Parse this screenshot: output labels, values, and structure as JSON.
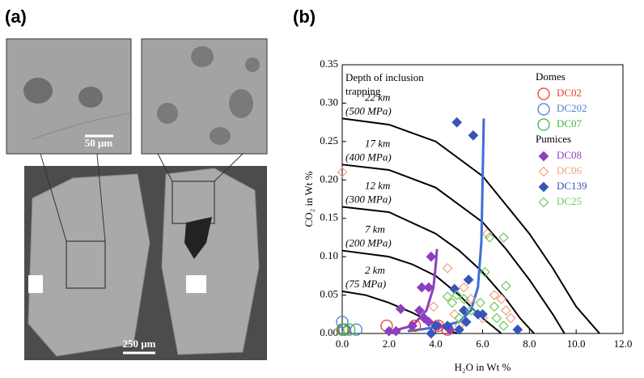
{
  "panel_labels": [
    "(a)",
    "(b)"
  ],
  "image_a": {
    "inset_scale": "50 μm",
    "main_scale": "250 μm"
  },
  "chart_data": {
    "type": "scatter",
    "x_label": "H₂O in Wt %",
    "y_label": "CO₂ in Wt %",
    "annotation": [
      "Depth of inclusion",
      "trapping"
    ],
    "xlim": [
      0,
      12
    ],
    "ylim": [
      0,
      0.35
    ],
    "xticks": [
      {
        "value": 0,
        "label": "0.0"
      },
      {
        "value": 2,
        "label": "2.0"
      },
      {
        "value": 4,
        "label": "4.0"
      },
      {
        "value": 6,
        "label": "6.0"
      },
      {
        "value": 8,
        "label": "8.0"
      },
      {
        "value": 10,
        "label": "10.0"
      },
      {
        "value": 12,
        "label": "12.0"
      }
    ],
    "yticks": [
      {
        "value": 0,
        "label": "0.00"
      },
      {
        "value": 0.05,
        "label": "0.05"
      },
      {
        "value": 0.1,
        "label": "0.10"
      },
      {
        "value": 0.15,
        "label": "0.15"
      },
      {
        "value": 0.2,
        "label": "0.20"
      },
      {
        "value": 0.25,
        "label": "0.25"
      },
      {
        "value": 0.3,
        "label": "0.30"
      },
      {
        "value": 0.35,
        "label": "0.35"
      }
    ],
    "legend_groups": [
      "Domes",
      "Pumices"
    ],
    "series": [
      {
        "name": "DC02",
        "group": 0,
        "marker": "circle",
        "filled": false,
        "color": "#e8402a",
        "x": [
          0.05,
          1.9,
          3.1,
          4.1,
          4.5
        ],
        "values": [
          0.005,
          0.01,
          0.01,
          0.01,
          0.005
        ]
      },
      {
        "name": "DC202",
        "group": 0,
        "marker": "circle",
        "filled": false,
        "color": "#4a7fd0",
        "x": [
          0,
          0.1,
          0.6
        ],
        "values": [
          0.015,
          0.005,
          0.005
        ]
      },
      {
        "name": "DC07",
        "group": 0,
        "marker": "circle",
        "filled": false,
        "color": "#3db83a",
        "x": [
          0,
          0.3
        ],
        "values": [
          0.005,
          0.005
        ]
      },
      {
        "name": "DC08",
        "group": 1,
        "marker": "diamond",
        "filled": true,
        "color": "#8e3fc0",
        "x": [
          3.8,
          3.4,
          3.7,
          2.5,
          3.3,
          3.5,
          3.7,
          4.1,
          3.0,
          2.3,
          2.0,
          4.6
        ],
        "values": [
          0.1,
          0.06,
          0.06,
          0.032,
          0.03,
          0.02,
          0.015,
          0.01,
          0.01,
          0.003,
          0.003,
          0.005
        ]
      },
      {
        "name": "DC06",
        "group": 1,
        "marker": "diamond",
        "filled": false,
        "color": "#f0a080",
        "x": [
          0,
          6.2,
          4.5,
          5.2,
          6.5,
          6.8,
          7.0,
          5.5,
          6.0,
          4.8,
          7.2,
          3.9,
          5.0
        ],
        "values": [
          0.21,
          0.13,
          0.085,
          0.06,
          0.05,
          0.045,
          0.03,
          0.045,
          0.02,
          0.025,
          0.02,
          0.035,
          0.01
        ]
      },
      {
        "name": "DC139",
        "group": 1,
        "marker": "diamond",
        "filled": true,
        "color": "#3556b8",
        "x": [
          4.9,
          5.6,
          5.4,
          4.8,
          5.2,
          6.0,
          5.8,
          5.3,
          4.5,
          4.0,
          7.5,
          5.0,
          3.8
        ],
        "values": [
          0.275,
          0.258,
          0.07,
          0.058,
          0.03,
          0.025,
          0.025,
          0.015,
          0.01,
          0.01,
          0.005,
          0.005,
          0.0
        ]
      },
      {
        "name": "DC25",
        "group": 1,
        "marker": "diamond",
        "filled": false,
        "color": "#6acc5a",
        "x": [
          6.9,
          6.3,
          7.0,
          6.1,
          6.5,
          4.9,
          4.5,
          5.2,
          4.7,
          5.9,
          6.6,
          6.9,
          5.5,
          5.0
        ],
        "values": [
          0.125,
          0.125,
          0.062,
          0.08,
          0.035,
          0.05,
          0.048,
          0.045,
          0.04,
          0.04,
          0.02,
          0.01,
          0.03,
          0.02
        ]
      }
    ],
    "isobars": [
      {
        "depth": "22 km",
        "pressure": "(500 MPa)",
        "x": [
          0,
          2,
          4,
          6,
          8,
          9,
          10,
          11
        ],
        "y": [
          0.28,
          0.272,
          0.25,
          0.205,
          0.13,
          0.085,
          0.035,
          0
        ]
      },
      {
        "depth": "17 km",
        "pressure": "(400 MPa)",
        "x": [
          0,
          2,
          4,
          6,
          7,
          8,
          9,
          9.5
        ],
        "y": [
          0.22,
          0.213,
          0.19,
          0.145,
          0.11,
          0.07,
          0.025,
          0
        ]
      },
      {
        "depth": "12 km",
        "pressure": "(300 MPa)",
        "x": [
          0,
          2,
          4,
          5,
          6,
          7,
          7.6,
          8.2
        ],
        "y": [
          0.165,
          0.158,
          0.13,
          0.108,
          0.08,
          0.045,
          0.02,
          0
        ]
      },
      {
        "depth": "7 km",
        "pressure": "(200 MPa)",
        "x": [
          0,
          2,
          3,
          4,
          5,
          6,
          6.8
        ],
        "y": [
          0.108,
          0.1,
          0.09,
          0.075,
          0.05,
          0.02,
          0
        ]
      },
      {
        "depth": "2 km",
        "pressure": "(75 MPa)",
        "x": [
          0,
          1,
          2,
          3,
          4,
          4.9
        ],
        "y": [
          0.055,
          0.05,
          0.04,
          0.027,
          0.012,
          0
        ]
      }
    ],
    "trends": [
      {
        "color": "#8e3fc0",
        "x": [
          2.1,
          3,
          3.6,
          3.9,
          4.0,
          4.05
        ],
        "y": [
          0.003,
          0.01,
          0.03,
          0.06,
          0.09,
          0.11
        ]
      },
      {
        "color": "#3b6fd8",
        "x": [
          2.8,
          4,
          5,
          5.5,
          5.8,
          5.95,
          6.0,
          6.05
        ],
        "y": [
          0.003,
          0.008,
          0.015,
          0.03,
          0.06,
          0.12,
          0.2,
          0.28
        ]
      }
    ]
  }
}
